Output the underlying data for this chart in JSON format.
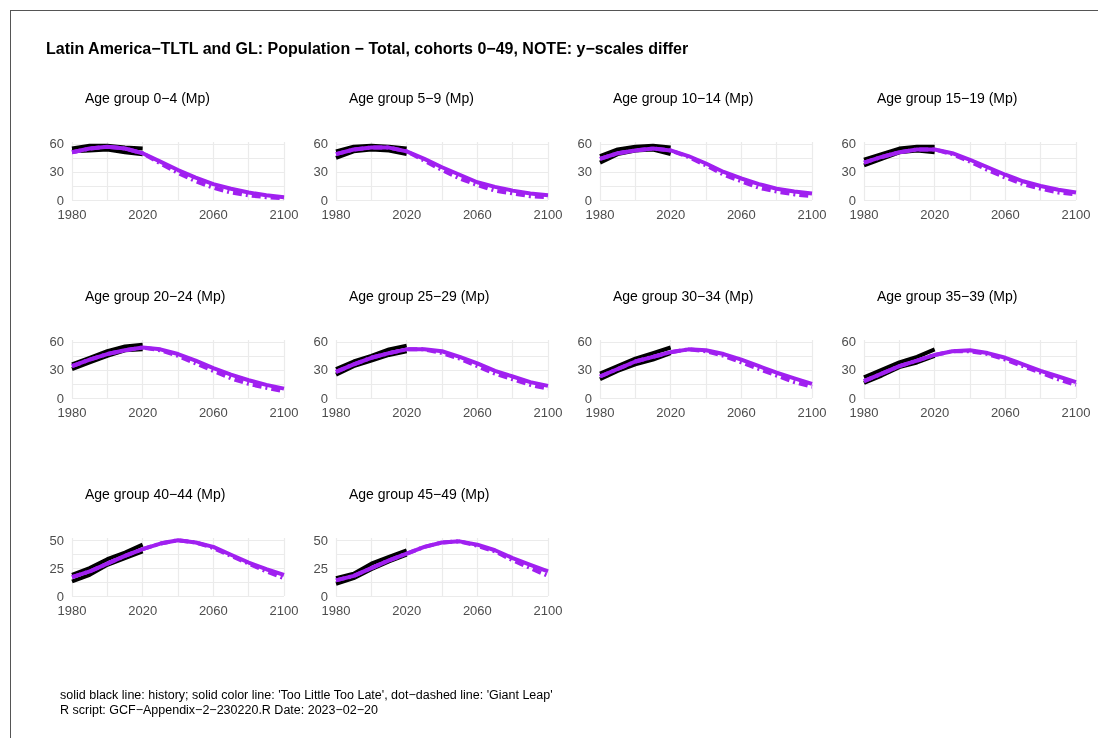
{
  "chart_data": [
    {
      "type": "other",
      "title": "Latin America−TLTL and GL: Population − Total, cohorts 0−49, NOTE: y−scales differ",
      "annotations": [
        "solid black line: history; solid color line: 'Too Little Too Late', dot−dashed line: 'Giant Leap'",
        "R script: GCF−Appendix−2−230220.R Date: 2023−02−20"
      ]
    },
    {
      "type": "line",
      "title": "Age group 0−4 (Mp)",
      "x": [
        1980,
        1990,
        2000,
        2010,
        2020,
        2030,
        2040,
        2050,
        2060,
        2070,
        2080,
        2090,
        2100
      ],
      "xlim": [
        1980,
        2100
      ],
      "xticks": [
        1980,
        {
          "value": 2000,
          "label": null
        },
        2020,
        {
          "value": 2040,
          "label": null
        },
        2060,
        {
          "value": 2080,
          "label": null
        },
        2100
      ],
      "ylim": [
        0,
        62
      ],
      "yticks": [
        0,
        {
          "value": 15,
          "label": null
        },
        30,
        {
          "value": 45,
          "label": null
        },
        60
      ],
      "grid": true,
      "series": [
        {
          "color": "#000000",
          "x": [
            1980,
            1990,
            2000,
            2010,
            2020
          ],
          "values": [
            55,
            58,
            58,
            56,
            55
          ]
        },
        {
          "color": "#000000",
          "x": [
            1980,
            1990,
            2000,
            2010,
            2020
          ],
          "values": [
            52,
            53,
            54,
            51,
            49
          ]
        },
        {
          "color": "#a020f0",
          "values": [
            51,
            55,
            57,
            55,
            50,
            41,
            32,
            24,
            17,
            12,
            8,
            5,
            3
          ]
        },
        {
          "color": "#a020f0",
          "line_style": "dashed",
          "values": [
            51,
            55,
            57,
            55,
            50,
            39,
            29,
            20,
            13,
            8,
            5,
            3,
            2
          ]
        }
      ]
    },
    {
      "type": "line",
      "title": "Age group 5−9 (Mp)",
      "x": [
        1980,
        1990,
        2000,
        2010,
        2020,
        2030,
        2040,
        2050,
        2060,
        2070,
        2080,
        2090,
        2100
      ],
      "xlim": [
        1980,
        2100
      ],
      "xticks": [
        1980,
        {
          "value": 2000,
          "label": null
        },
        2020,
        {
          "value": 2040,
          "label": null
        },
        2060,
        {
          "value": 2080,
          "label": null
        },
        2100
      ],
      "ylim": [
        0,
        62
      ],
      "yticks": [
        0,
        {
          "value": 15,
          "label": null
        },
        30,
        {
          "value": 45,
          "label": null
        },
        60
      ],
      "grid": true,
      "series": [
        {
          "color": "#000000",
          "x": [
            1980,
            1990,
            2000,
            2010,
            2020
          ],
          "values": [
            52,
            57,
            58,
            57,
            55
          ]
        },
        {
          "color": "#000000",
          "x": [
            1980,
            1990,
            2000,
            2010,
            2020
          ],
          "values": [
            45,
            52,
            54,
            53,
            49
          ]
        },
        {
          "color": "#a020f0",
          "values": [
            49,
            54,
            56,
            56,
            52,
            44,
            35,
            27,
            19,
            14,
            10,
            7,
            5
          ]
        },
        {
          "color": "#a020f0",
          "line_style": "dashed",
          "values": [
            49,
            54,
            56,
            56,
            52,
            42,
            32,
            23,
            16,
            10,
            7,
            4,
            3
          ]
        }
      ]
    },
    {
      "type": "line",
      "title": "Age group 10−14 (Mp)",
      "x": [
        1980,
        1990,
        2000,
        2010,
        2020,
        2030,
        2040,
        2050,
        2060,
        2070,
        2080,
        2090,
        2100
      ],
      "xlim": [
        1980,
        2100
      ],
      "xticks": [
        1980,
        {
          "value": 2000,
          "label": null
        },
        2020,
        {
          "value": 2040,
          "label": null
        },
        2060,
        {
          "value": 2080,
          "label": null
        },
        2100
      ],
      "ylim": [
        0,
        62
      ],
      "yticks": [
        0,
        {
          "value": 15,
          "label": null
        },
        30,
        {
          "value": 45,
          "label": null
        },
        60
      ],
      "grid": true,
      "series": [
        {
          "color": "#000000",
          "x": [
            1980,
            1990,
            2000,
            2010,
            2020
          ],
          "values": [
            47,
            54,
            57,
            58,
            56
          ]
        },
        {
          "color": "#000000",
          "x": [
            1980,
            1990,
            2000,
            2010,
            2020
          ],
          "values": [
            40,
            49,
            53,
            54,
            49
          ]
        },
        {
          "color": "#a020f0",
          "values": [
            44,
            50,
            53,
            55,
            53,
            47,
            39,
            30,
            23,
            17,
            12,
            9,
            7
          ]
        },
        {
          "color": "#a020f0",
          "line_style": "dashed",
          "values": [
            44,
            50,
            53,
            55,
            53,
            46,
            37,
            27,
            20,
            13,
            9,
            6,
            4
          ]
        }
      ]
    },
    {
      "type": "line",
      "title": "Age group 15−19 (Mp)",
      "x": [
        1980,
        1990,
        2000,
        2010,
        2020,
        2030,
        2040,
        2050,
        2060,
        2070,
        2080,
        2090,
        2100
      ],
      "xlim": [
        1980,
        2100
      ],
      "xticks": [
        1980,
        {
          "value": 2000,
          "label": null
        },
        2020,
        {
          "value": 2040,
          "label": null
        },
        2060,
        {
          "value": 2080,
          "label": null
        },
        2100
      ],
      "ylim": [
        0,
        62
      ],
      "yticks": [
        0,
        {
          "value": 15,
          "label": null
        },
        30,
        {
          "value": 45,
          "label": null
        },
        60
      ],
      "grid": true,
      "series": [
        {
          "color": "#000000",
          "x": [
            1980,
            1990,
            2000,
            2010,
            2020
          ],
          "values": [
            43,
            49,
            55,
            57,
            57
          ]
        },
        {
          "color": "#000000",
          "x": [
            1980,
            1990,
            2000,
            2010,
            2020
          ],
          "values": [
            37,
            44,
            51,
            53,
            51
          ]
        },
        {
          "color": "#a020f0",
          "values": [
            40,
            46,
            51,
            54,
            54,
            50,
            43,
            35,
            27,
            20,
            15,
            11,
            8
          ]
        },
        {
          "color": "#a020f0",
          "line_style": "dashed",
          "values": [
            40,
            46,
            51,
            54,
            54,
            49,
            41,
            32,
            24,
            17,
            12,
            8,
            6
          ]
        }
      ]
    },
    {
      "type": "line",
      "title": "Age group 20−24 (Mp)",
      "x": [
        1980,
        1990,
        2000,
        2010,
        2020,
        2030,
        2040,
        2050,
        2060,
        2070,
        2080,
        2090,
        2100
      ],
      "xlim": [
        1980,
        2100
      ],
      "xticks": [
        1980,
        {
          "value": 2000,
          "label": null
        },
        2020,
        {
          "value": 2040,
          "label": null
        },
        2060,
        {
          "value": 2080,
          "label": null
        },
        2100
      ],
      "ylim": [
        0,
        62
      ],
      "yticks": [
        0,
        {
          "value": 15,
          "label": null
        },
        30,
        {
          "value": 45,
          "label": null
        },
        60
      ],
      "grid": true,
      "series": [
        {
          "color": "#000000",
          "x": [
            1980,
            1990,
            2000,
            2010,
            2020
          ],
          "values": [
            36,
            43,
            50,
            55,
            57
          ]
        },
        {
          "color": "#000000",
          "x": [
            1980,
            1990,
            2000,
            2010,
            2020
          ],
          "values": [
            31,
            38,
            45,
            51,
            52
          ]
        },
        {
          "color": "#a020f0",
          "values": [
            34,
            41,
            47,
            51,
            54,
            52,
            47,
            40,
            32,
            25,
            19,
            14,
            10
          ]
        },
        {
          "color": "#a020f0",
          "line_style": "dashed",
          "values": [
            34,
            41,
            47,
            51,
            54,
            51,
            45,
            37,
            29,
            21,
            15,
            11,
            7
          ]
        }
      ]
    },
    {
      "type": "line",
      "title": "Age group 25−29 (Mp)",
      "x": [
        1980,
        1990,
        2000,
        2010,
        2020,
        2030,
        2040,
        2050,
        2060,
        2070,
        2080,
        2090,
        2100
      ],
      "xlim": [
        1980,
        2100
      ],
      "xticks": [
        1980,
        {
          "value": 2000,
          "label": null
        },
        2020,
        {
          "value": 2040,
          "label": null
        },
        2060,
        {
          "value": 2080,
          "label": null
        },
        2100
      ],
      "ylim": [
        0,
        62
      ],
      "yticks": [
        0,
        {
          "value": 15,
          "label": null
        },
        30,
        {
          "value": 45,
          "label": null
        },
        60
      ],
      "grid": true,
      "series": [
        {
          "color": "#000000",
          "x": [
            1980,
            1990,
            2000,
            2010,
            2020
          ],
          "values": [
            31,
            39,
            45,
            52,
            56
          ]
        },
        {
          "color": "#000000",
          "x": [
            1980,
            1990,
            2000,
            2010,
            2020
          ],
          "values": [
            25,
            34,
            40,
            46,
            50
          ]
        },
        {
          "color": "#a020f0",
          "values": [
            28,
            36,
            43,
            48,
            52,
            52,
            50,
            44,
            37,
            29,
            23,
            17,
            13
          ]
        },
        {
          "color": "#a020f0",
          "line_style": "dashed",
          "values": [
            28,
            36,
            43,
            48,
            52,
            52,
            48,
            42,
            34,
            26,
            20,
            14,
            10
          ]
        }
      ]
    },
    {
      "type": "line",
      "title": "Age group 30−34 (Mp)",
      "x": [
        1980,
        1990,
        2000,
        2010,
        2020,
        2030,
        2040,
        2050,
        2060,
        2070,
        2080,
        2090,
        2100
      ],
      "xlim": [
        1980,
        2100
      ],
      "xticks": [
        1980,
        {
          "value": 2000,
          "label": null
        },
        2020,
        {
          "value": 2040,
          "label": null
        },
        2060,
        {
          "value": 2080,
          "label": null
        },
        2100
      ],
      "ylim": [
        0,
        62
      ],
      "yticks": [
        0,
        {
          "value": 15,
          "label": null
        },
        30,
        {
          "value": 45,
          "label": null
        },
        60
      ],
      "grid": true,
      "series": [
        {
          "color": "#000000",
          "x": [
            1980,
            1990,
            2000,
            2010,
            2020
          ],
          "values": [
            26,
            34,
            42,
            48,
            54
          ]
        },
        {
          "color": "#000000",
          "x": [
            1980,
            1990,
            2000,
            2010,
            2020
          ],
          "values": [
            20,
            29,
            36,
            41,
            48
          ]
        },
        {
          "color": "#a020f0",
          "values": [
            23,
            31,
            39,
            44,
            49,
            52,
            51,
            47,
            41,
            34,
            27,
            21,
            15
          ]
        },
        {
          "color": "#a020f0",
          "line_style": "dashed",
          "values": [
            23,
            31,
            39,
            44,
            49,
            52,
            50,
            45,
            38,
            31,
            24,
            17,
            12
          ]
        }
      ]
    },
    {
      "type": "line",
      "title": "Age group 35−39 (Mp)",
      "x": [
        1980,
        1990,
        2000,
        2010,
        2020,
        2030,
        2040,
        2050,
        2060,
        2070,
        2080,
        2090,
        2100
      ],
      "xlim": [
        1980,
        2100
      ],
      "xticks": [
        1980,
        {
          "value": 2000,
          "label": null
        },
        2020,
        {
          "value": 2040,
          "label": null
        },
        2060,
        {
          "value": 2080,
          "label": null
        },
        2100
      ],
      "ylim": [
        0,
        62
      ],
      "yticks": [
        0,
        {
          "value": 15,
          "label": null
        },
        30,
        {
          "value": 45,
          "label": null
        },
        60
      ],
      "grid": true,
      "series": [
        {
          "color": "#000000",
          "x": [
            1980,
            1990,
            2000,
            2010,
            2020
          ],
          "values": [
            22,
            30,
            38,
            44,
            52
          ]
        },
        {
          "color": "#000000",
          "x": [
            1980,
            1990,
            2000,
            2010,
            2020
          ],
          "values": [
            16,
            24,
            33,
            38,
            45
          ]
        },
        {
          "color": "#a020f0",
          "values": [
            18,
            26,
            34,
            40,
            46,
            50,
            51,
            48,
            43,
            36,
            29,
            23,
            17
          ]
        },
        {
          "color": "#a020f0",
          "line_style": "dashed",
          "values": [
            18,
            26,
            34,
            40,
            46,
            50,
            50,
            47,
            41,
            34,
            27,
            20,
            14
          ]
        }
      ]
    },
    {
      "type": "line",
      "title": "Age group 40−44 (Mp)",
      "x": [
        1980,
        1990,
        2000,
        2010,
        2020,
        2030,
        2040,
        2050,
        2060,
        2070,
        2080,
        2090,
        2100
      ],
      "xlim": [
        1980,
        2100
      ],
      "xticks": [
        1980,
        {
          "value": 2000,
          "label": null
        },
        2020,
        {
          "value": 2040,
          "label": null
        },
        2060,
        {
          "value": 2080,
          "label": null
        },
        2100
      ],
      "ylim": [
        0,
        52
      ],
      "yticks": [
        0,
        {
          "value": 12.5,
          "label": null
        },
        25,
        {
          "value": 37.5,
          "label": null
        },
        50
      ],
      "grid": true,
      "series": [
        {
          "color": "#000000",
          "x": [
            1980,
            1990,
            2000,
            2010,
            2020
          ],
          "values": [
            19,
            25,
            33,
            39,
            46
          ]
        },
        {
          "color": "#000000",
          "x": [
            1980,
            1990,
            2000,
            2010,
            2020
          ],
          "values": [
            13,
            19,
            28,
            34,
            40
          ]
        },
        {
          "color": "#a020f0",
          "values": [
            17,
            22,
            29,
            36,
            42,
            47,
            50,
            48,
            44,
            37,
            30,
            24,
            19
          ]
        },
        {
          "color": "#a020f0",
          "line_style": "dashed",
          "values": [
            17,
            22,
            29,
            36,
            42,
            47,
            50,
            48,
            43,
            36,
            29,
            22,
            16
          ]
        }
      ]
    },
    {
      "type": "line",
      "title": "Age group 45−49 (Mp)",
      "x": [
        1980,
        1990,
        2000,
        2010,
        2020,
        2030,
        2040,
        2050,
        2060,
        2070,
        2080,
        2090,
        2100
      ],
      "xlim": [
        1980,
        2100
      ],
      "xticks": [
        1980,
        {
          "value": 2000,
          "label": null
        },
        2020,
        {
          "value": 2040,
          "label": null
        },
        2060,
        {
          "value": 2080,
          "label": null
        },
        2100
      ],
      "ylim": [
        0,
        52
      ],
      "yticks": [
        0,
        {
          "value": 12.5,
          "label": null
        },
        25,
        {
          "value": 37.5,
          "label": null
        },
        50
      ],
      "grid": true,
      "series": [
        {
          "color": "#000000",
          "x": [
            1980,
            1990,
            2000,
            2010,
            2020
          ],
          "values": [
            16,
            20,
            29,
            35,
            41
          ]
        },
        {
          "color": "#000000",
          "x": [
            1980,
            1990,
            2000,
            2010,
            2020
          ],
          "values": [
            11,
            16,
            24,
            31,
            37
          ]
        },
        {
          "color": "#a020f0",
          "values": [
            14,
            18,
            25,
            32,
            38,
            44,
            48,
            49,
            46,
            41,
            34,
            28,
            22
          ]
        },
        {
          "color": "#a020f0",
          "line_style": "dashed",
          "values": [
            14,
            18,
            25,
            32,
            38,
            44,
            48,
            49,
            45,
            40,
            32,
            25,
            18
          ]
        }
      ]
    }
  ]
}
